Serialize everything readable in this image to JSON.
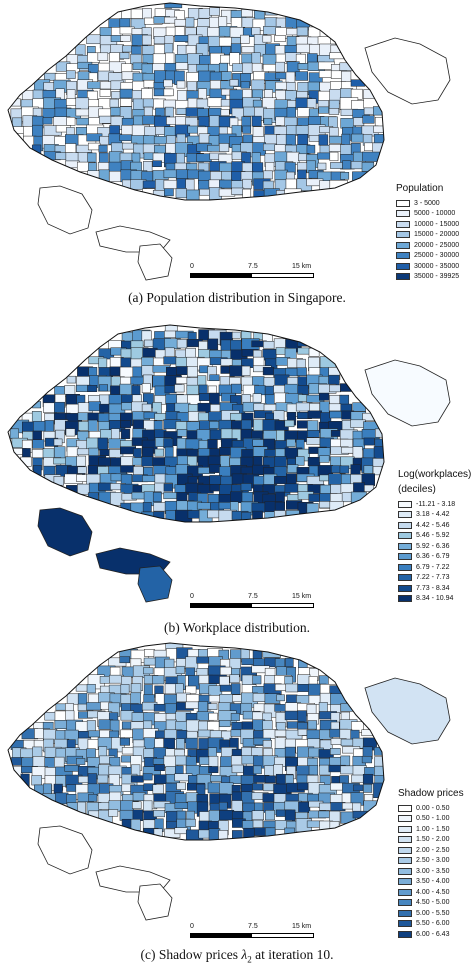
{
  "panels": [
    {
      "id": "population",
      "legend_title": "Population",
      "legend_title_2": "",
      "classes": [
        "3 - 5000",
        "5000 - 10000",
        "10000 - 15000",
        "15000 - 20000",
        "20000 - 25000",
        "25000 - 30000",
        "30000 - 35000",
        "35000 - 39925"
      ],
      "colors": [
        "#ffffff",
        "#eaf1fa",
        "#c9dcf0",
        "#a4c7e6",
        "#6da7d5",
        "#3f82c1",
        "#1f5ea8",
        "#0c3978"
      ],
      "scale": {
        "zero": "0",
        "mid": "7.5",
        "end": "15 km"
      },
      "caption": "(a) Population distribution in Singapore."
    },
    {
      "id": "workplaces",
      "legend_title": "Log(workplaces)",
      "legend_title_2": "(deciles)",
      "classes": [
        "-11.21 - 3.18",
        "3.18 - 4.42",
        "4.42 - 5.46",
        "5.46 - 5.92",
        "5.92 - 6.36",
        "6.36 - 6.79",
        "6.79 - 7.22",
        "7.22 - 7.73",
        "7.73 - 8.34",
        "8.34 - 10.94"
      ],
      "colors": [
        "#f7fbff",
        "#deebf7",
        "#c6dbef",
        "#9ecae1",
        "#74add8",
        "#5b9bd0",
        "#3a7fbf",
        "#2363a6",
        "#124a8d",
        "#08306b"
      ],
      "scale": {
        "zero": "0",
        "mid": "7.5",
        "end": "15 km"
      },
      "caption": "(b) Workplace distribution."
    },
    {
      "id": "shadow",
      "legend_title": "Shadow prices",
      "legend_title_2": "",
      "classes": [
        "0.00 - 0.50",
        "0.50 - 1.00",
        "1.00 - 1.50",
        "1.50 - 2.00",
        "2.00 - 2.50",
        "2.50 - 3.00",
        "3.00 - 3.50",
        "3.50 - 4.00",
        "4.00 - 4.50",
        "4.50 - 5.00",
        "5.00 - 5.50",
        "5.50 - 6.00",
        "6.00 - 6.43"
      ],
      "colors": [
        "#ffffff",
        "#f0f6fc",
        "#e2edf8",
        "#d2e3f3",
        "#c0d8ee",
        "#aacbe7",
        "#92bde0",
        "#7aadd7",
        "#619bcd",
        "#4887c0",
        "#3270af",
        "#1f589a",
        "#0e3f7f"
      ],
      "scale": {
        "zero": "0",
        "mid": "7.5",
        "end": "15 km"
      },
      "caption_prefix": "(c) Shadow prices ",
      "caption_symbol": "λ",
      "caption_sub": "2",
      "caption_suffix": " at iteration 10."
    }
  ]
}
